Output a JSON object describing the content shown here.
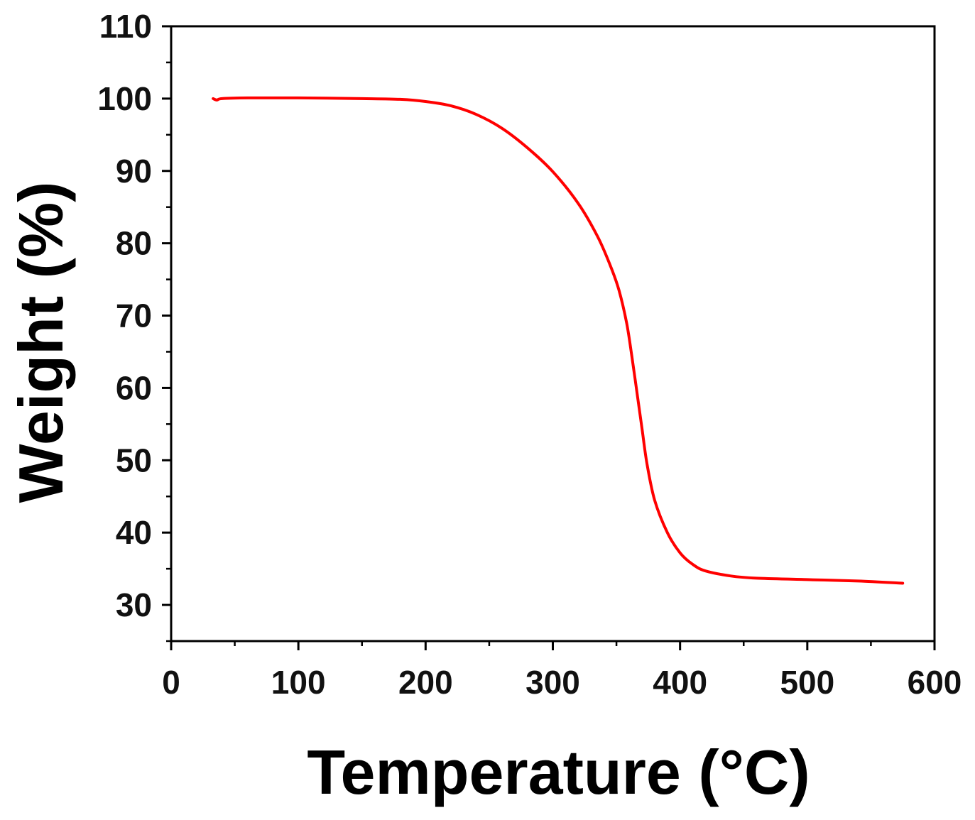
{
  "chart_data": {
    "type": "line",
    "title": "",
    "xlabel": "Temperature (°C)",
    "ylabel": "Weight (%)",
    "xlim": [
      0,
      600
    ],
    "ylim": [
      25,
      110
    ],
    "x_ticks": [
      0,
      100,
      200,
      300,
      400,
      500,
      600
    ],
    "x_tick_labels": [
      "0",
      "100",
      "200",
      "300",
      "400",
      "500",
      "600"
    ],
    "y_ticks": [
      30,
      40,
      50,
      60,
      70,
      80,
      90,
      100,
      110
    ],
    "y_tick_labels": [
      "30",
      "40",
      "50",
      "60",
      "70",
      "80",
      "90",
      "100",
      "110"
    ],
    "grid": false,
    "legend": "none",
    "line_color": "#ff0000",
    "series": [
      {
        "x": [
          33,
          36,
          40,
          60,
          100,
          150,
          180,
          200,
          220,
          240,
          260,
          280,
          300,
          320,
          335,
          345,
          352,
          358,
          362,
          366,
          370,
          374,
          380,
          390,
          400,
          410,
          420,
          440,
          460,
          500,
          540,
          575
        ],
        "y": [
          100.0,
          99.8,
          100.0,
          100.1,
          100.1,
          100.0,
          99.9,
          99.6,
          99.0,
          97.8,
          95.9,
          93.2,
          89.9,
          85.5,
          81.0,
          77.0,
          73.5,
          69.0,
          64.5,
          59.5,
          54.5,
          49.5,
          44.5,
          40.0,
          37.2,
          35.6,
          34.7,
          34.0,
          33.7,
          33.5,
          33.3,
          33.0
        ]
      }
    ]
  }
}
